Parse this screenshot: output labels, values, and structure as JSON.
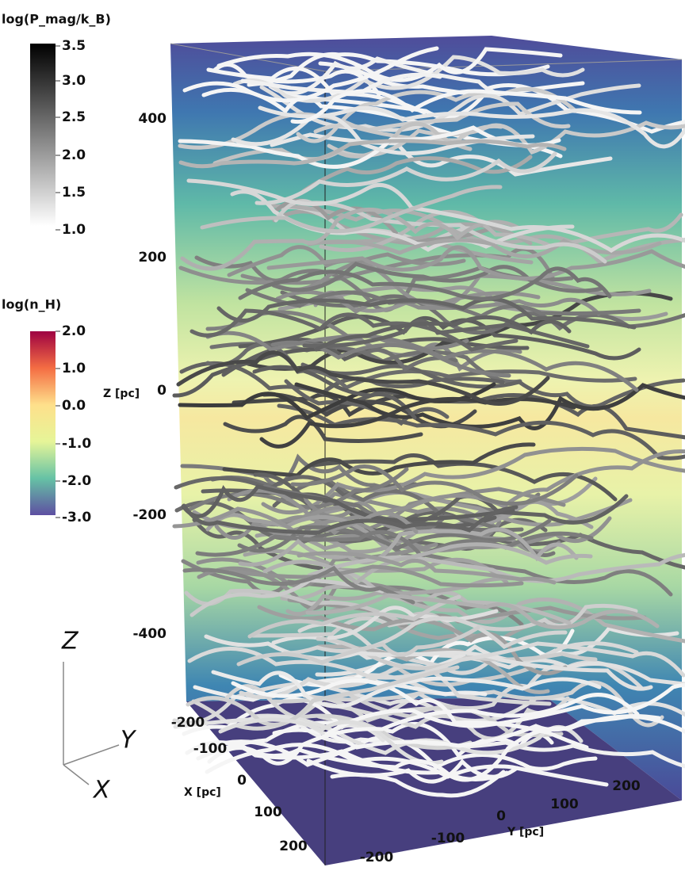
{
  "colorbars": [
    {
      "title": "log(P_mag/k_B)",
      "ticks": [
        "3.5",
        "3.0",
        "2.5",
        "2.0",
        "1.5",
        "1.0"
      ]
    },
    {
      "title": "log(n_H)",
      "ticks": [
        "2.0",
        "1.0",
        "0.0",
        "-1.0",
        "-2.0",
        "-3.0"
      ]
    }
  ],
  "axes": {
    "z": {
      "label": "Z [pc]",
      "ticks": [
        "400",
        "200",
        "0",
        "-200",
        "-400"
      ]
    },
    "x": {
      "label": "X [pc]",
      "ticks": [
        "-200",
        "-100",
        "0",
        "100",
        "200"
      ]
    },
    "y": {
      "label": "Y [pc]",
      "ticks": [
        "-200",
        "-100",
        "0",
        "100",
        "200"
      ]
    }
  },
  "orientation": [
    "Z",
    "Y",
    "X"
  ]
}
